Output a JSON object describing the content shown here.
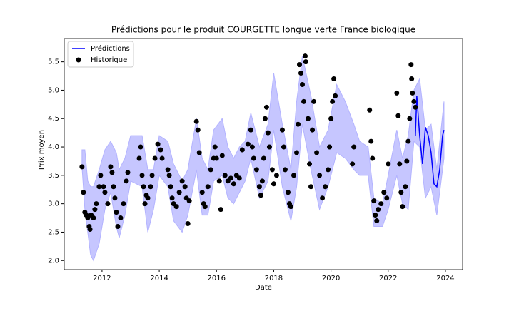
{
  "chart_data": {
    "type": "line",
    "title": "Prédictions pour le produit COURGETTE longue verte France biologique",
    "x_label": "Date",
    "y_label": "Prix moyen",
    "xlim": [
      2010.68,
      2024.6
    ],
    "ylim": [
      1.84,
      5.91
    ],
    "xticks": [
      2012,
      2014,
      2016,
      2018,
      2020,
      2022,
      2024
    ],
    "yticks": [
      {
        "value": 2,
        "label": "2.0"
      },
      2.5,
      {
        "value": 3,
        "label": "3.0"
      },
      3.5,
      {
        "value": 4,
        "label": "4.0"
      },
      4.5,
      {
        "value": 5,
        "label": "5.0"
      },
      5.5
    ],
    "legend": "upper left",
    "band": {
      "color": "#b3b3ff",
      "x": [
        2011.3,
        2011.4,
        2011.5,
        2011.6,
        2011.7,
        2011.9,
        2012.1,
        2012.3,
        2012.5,
        2012.6,
        2012.8,
        2013.0,
        2013.4,
        2013.6,
        2013.8,
        2014.0,
        2014.3,
        2014.5,
        2014.8,
        2015.0,
        2015.3,
        2015.5,
        2015.7,
        2015.9,
        2016.2,
        2016.4,
        2016.6,
        2016.8,
        2017.0,
        2017.2,
        2017.5,
        2017.8,
        2018.0,
        2018.3,
        2018.6,
        2018.8,
        2019.0,
        2019.3,
        2019.6,
        2019.9,
        2020.2,
        2020.5,
        2020.8,
        2021.0,
        2021.3,
        2021.5,
        2021.8,
        2022.0,
        2022.3,
        2022.5,
        2022.7,
        2022.9,
        2023.1,
        2023.3,
        2023.5,
        2023.7,
        2023.95
      ],
      "upper": [
        3.95,
        3.95,
        3.4,
        3.3,
        3.3,
        3.6,
        3.95,
        4.1,
        3.9,
        3.6,
        3.8,
        4.2,
        4.2,
        3.6,
        3.6,
        4.2,
        4.1,
        3.7,
        3.4,
        3.6,
        4.5,
        3.8,
        3.6,
        4.3,
        4.5,
        4.0,
        3.8,
        4.0,
        4.1,
        4.6,
        4.0,
        4.4,
        5.3,
        4.4,
        3.6,
        4.8,
        5.6,
        4.9,
        4.0,
        4.3,
        5.1,
        4.8,
        4.4,
        4.1,
        4.0,
        3.1,
        3.0,
        3.5,
        4.3,
        3.8,
        4.2,
        5.0,
        5.2,
        4.3,
        4.4,
        3.6,
        4.8
      ],
      "lower": [
        3.65,
        2.9,
        2.5,
        2.1,
        2.0,
        2.3,
        2.9,
        3.2,
        2.6,
        2.4,
        2.8,
        3.4,
        3.3,
        2.5,
        2.9,
        3.5,
        3.3,
        2.7,
        2.5,
        2.8,
        3.6,
        2.8,
        2.8,
        3.4,
        3.5,
        3.1,
        3.0,
        3.2,
        3.4,
        3.8,
        3.1,
        3.4,
        4.3,
        3.3,
        2.7,
        3.3,
        4.4,
        3.6,
        2.9,
        3.3,
        3.9,
        3.8,
        3.6,
        3.5,
        3.5,
        2.6,
        2.6,
        2.9,
        3.5,
        3.0,
        2.9,
        4.1,
        4.0,
        3.1,
        3.3,
        2.8,
        3.8
      ]
    },
    "series": [
      {
        "name": "Prédictions",
        "type": "line",
        "color": "#0000ff",
        "x": [
          2022.95,
          2023.0,
          2023.1,
          2023.2,
          2023.3,
          2023.4,
          2023.5,
          2023.6,
          2023.7,
          2023.8,
          2023.9,
          2023.95
        ],
        "values": [
          4.2,
          4.9,
          4.2,
          3.7,
          4.35,
          4.2,
          3.9,
          3.35,
          3.3,
          3.6,
          4.2,
          4.3
        ]
      },
      {
        "name": "Historique",
        "type": "scatter",
        "color": "#000000",
        "x": [
          2011.3,
          2011.35,
          2011.4,
          2011.45,
          2011.5,
          2011.55,
          2011.58,
          2011.62,
          2011.7,
          2011.75,
          2011.8,
          2011.9,
          2011.95,
          2012.05,
          2012.1,
          2012.2,
          2012.3,
          2012.35,
          2012.4,
          2012.45,
          2012.5,
          2012.55,
          2012.65,
          2012.75,
          2012.85,
          2012.9,
          2013.3,
          2013.35,
          2013.4,
          2013.45,
          2013.5,
          2013.55,
          2013.6,
          2013.7,
          2013.75,
          2013.85,
          2013.95,
          2014.05,
          2014.1,
          2014.3,
          2014.35,
          2014.4,
          2014.45,
          2014.5,
          2014.6,
          2014.7,
          2014.8,
          2014.9,
          2014.95,
          2015.0,
          2015.05,
          2015.3,
          2015.35,
          2015.4,
          2015.5,
          2015.55,
          2015.6,
          2015.7,
          2015.8,
          2015.9,
          2015.95,
          2016.0,
          2016.1,
          2016.15,
          2016.2,
          2016.3,
          2016.4,
          2016.5,
          2016.6,
          2016.7,
          2016.8,
          2016.9,
          2017.1,
          2017.2,
          2017.25,
          2017.3,
          2017.4,
          2017.5,
          2017.55,
          2017.6,
          2017.65,
          2017.7,
          2017.75,
          2017.8,
          2017.85,
          2017.95,
          2018.0,
          2018.1,
          2018.3,
          2018.35,
          2018.4,
          2018.5,
          2018.55,
          2018.6,
          2018.7,
          2018.8,
          2018.85,
          2018.9,
          2018.95,
          2019.0,
          2019.05,
          2019.1,
          2019.12,
          2019.2,
          2019.25,
          2019.3,
          2019.35,
          2019.4,
          2019.5,
          2019.6,
          2019.7,
          2019.8,
          2019.9,
          2019.95,
          2020.0,
          2020.05,
          2020.1,
          2020.15,
          2020.75,
          2020.8,
          2021.35,
          2021.4,
          2021.45,
          2021.5,
          2021.55,
          2021.6,
          2021.65,
          2021.75,
          2021.85,
          2021.95,
          2022.0,
          2022.3,
          2022.35,
          2022.4,
          2022.45,
          2022.5,
          2022.6,
          2022.65,
          2022.7,
          2022.75,
          2022.8,
          2022.82,
          2022.85,
          2022.9,
          2022.95
        ],
        "values": [
          3.65,
          3.2,
          2.85,
          2.8,
          2.75,
          2.6,
          2.55,
          2.8,
          2.75,
          2.9,
          3.0,
          3.3,
          3.5,
          3.3,
          3.2,
          3.0,
          3.65,
          3.55,
          3.3,
          3.1,
          2.85,
          2.6,
          2.75,
          3.0,
          3.4,
          3.55,
          3.8,
          4.0,
          3.5,
          3.3,
          3.0,
          3.15,
          3.1,
          3.3,
          3.5,
          3.8,
          4.05,
          3.95,
          3.8,
          3.6,
          3.5,
          3.3,
          3.1,
          3.0,
          2.95,
          3.2,
          3.4,
          3.3,
          3.1,
          2.65,
          3.05,
          4.45,
          4.3,
          3.9,
          3.2,
          3.0,
          2.95,
          3.3,
          3.6,
          3.8,
          4.0,
          3.8,
          3.4,
          2.9,
          3.85,
          3.5,
          3.4,
          3.45,
          3.35,
          3.5,
          3.45,
          3.95,
          4.05,
          4.3,
          4.0,
          3.8,
          3.6,
          3.3,
          3.15,
          3.4,
          3.8,
          4.5,
          4.7,
          4.25,
          4.0,
          3.6,
          3.35,
          3.5,
          4.3,
          4.0,
          3.6,
          3.2,
          3.0,
          2.95,
          3.5,
          3.9,
          4.4,
          5.45,
          5.3,
          5.1,
          4.8,
          5.6,
          5.5,
          4.5,
          3.7,
          3.3,
          4.3,
          4.8,
          3.9,
          3.5,
          3.1,
          3.3,
          3.6,
          4.0,
          4.5,
          4.8,
          5.2,
          4.9,
          3.7,
          4.0,
          4.65,
          4.1,
          3.8,
          3.05,
          2.8,
          2.7,
          2.9,
          3.0,
          3.2,
          3.1,
          3.7,
          4.95,
          4.55,
          3.7,
          3.2,
          2.95,
          3.3,
          3.75,
          4.1,
          4.5,
          5.45,
          5.2,
          4.95,
          4.8,
          4.7
        ]
      }
    ]
  }
}
